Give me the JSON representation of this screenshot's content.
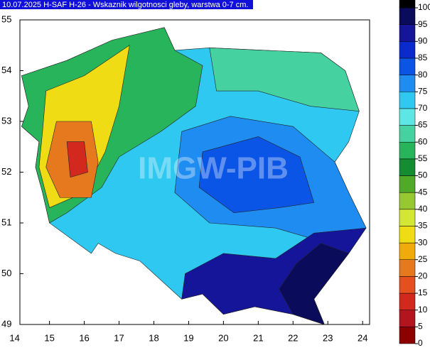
{
  "title": "10.07.2025 H-SAF H-26 - Wskaznik wilgotnosci gleby, warstwa 0-7 cm.",
  "watermark": "IMGW-PIB",
  "map": {
    "xlim": [
      14.15,
      24.2
    ],
    "ylim": [
      49,
      55
    ],
    "xticks": [
      14,
      15,
      16,
      17,
      18,
      19,
      20,
      21,
      22,
      23,
      24
    ],
    "yticks": [
      49,
      50,
      51,
      52,
      53,
      54,
      55
    ]
  },
  "colorbar": {
    "levels": [
      0,
      5,
      10,
      15,
      20,
      25,
      30,
      35,
      40,
      45,
      50,
      55,
      60,
      65,
      70,
      75,
      80,
      85,
      90,
      95,
      100
    ],
    "colors": [
      "#8c0000",
      "#b4141e",
      "#d2281e",
      "#e6501e",
      "#e6781e",
      "#f0aa0a",
      "#f0dc14",
      "#d2e632",
      "#96c832",
      "#50aa28",
      "#148c32",
      "#28b45a",
      "#46d2a0",
      "#5ee6e6",
      "#2ec8f0",
      "#1e8cf0",
      "#0a55e6",
      "#0a2ad0",
      "#15159a",
      "#0b0b5c",
      "#000000"
    ]
  }
}
